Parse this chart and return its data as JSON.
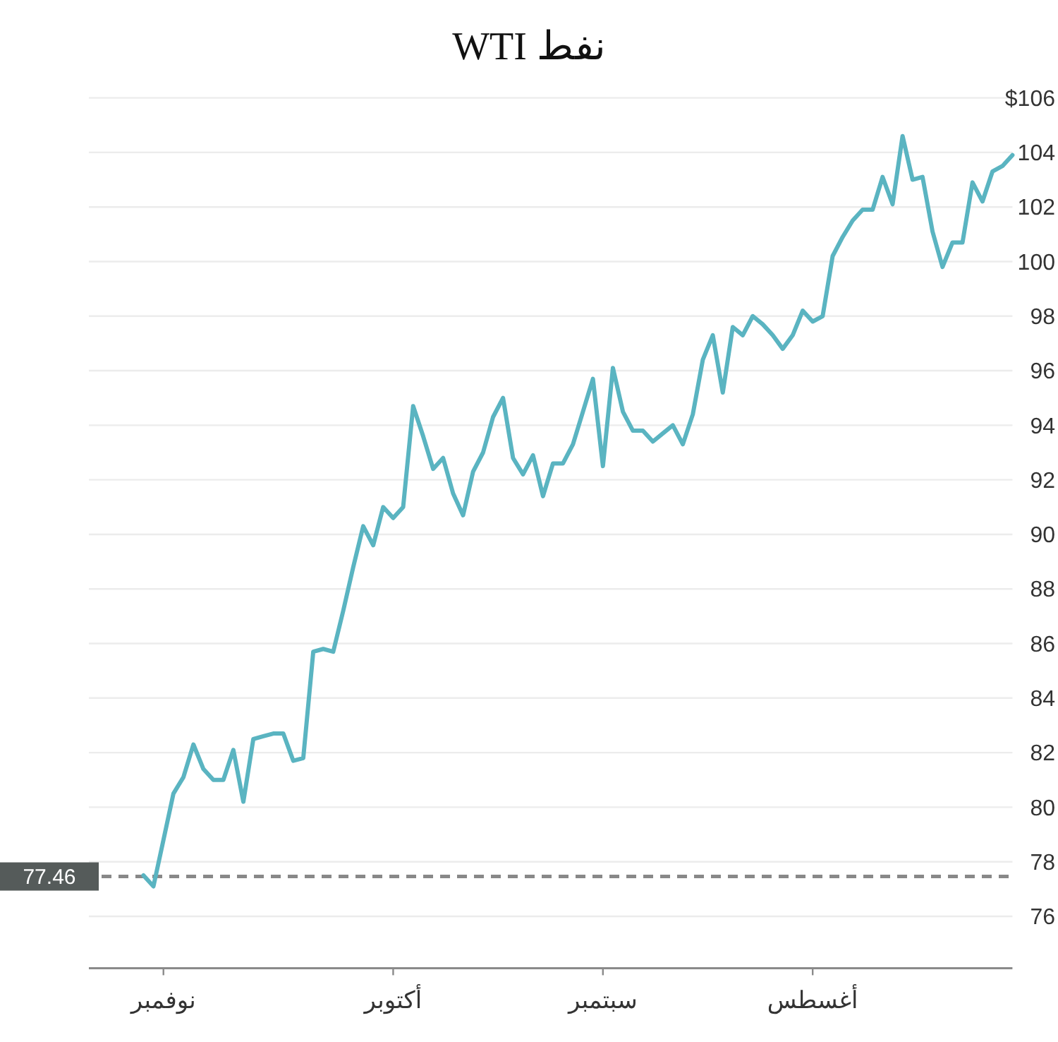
{
  "chart_data": {
    "type": "line",
    "title": "نفط WTI",
    "categories": [
      null,
      null,
      "نوفمبر",
      null,
      null,
      null,
      null,
      null,
      null,
      null,
      null,
      null,
      null,
      null,
      null,
      null,
      null,
      null,
      null,
      null,
      null,
      null,
      null,
      null,
      null,
      "أكتوبر",
      null,
      null,
      null,
      null,
      null,
      null,
      null,
      null,
      null,
      null,
      null,
      null,
      null,
      null,
      null,
      null,
      null,
      null,
      null,
      null,
      "سبتمبر",
      null,
      null,
      null,
      null,
      null,
      null,
      null,
      null,
      null,
      null,
      null,
      null,
      null,
      null,
      null,
      null,
      null,
      null,
      null,
      null,
      "أغسطس",
      null,
      null,
      null,
      null,
      null,
      null,
      null,
      null,
      null,
      null,
      null,
      null,
      null,
      null,
      null,
      null,
      null,
      null,
      null,
      null
    ],
    "series": [
      {
        "color": "#5ab4c1",
        "values": [
          77.5,
          77.1,
          78.8,
          80.5,
          81.1,
          82.3,
          81.4,
          81.0,
          81.0,
          82.1,
          80.2,
          82.5,
          82.6,
          82.7,
          82.7,
          81.7,
          81.8,
          85.7,
          85.8,
          85.7,
          87.2,
          88.8,
          90.3,
          89.6,
          91.0,
          90.6,
          91.0,
          94.7,
          93.6,
          92.4,
          92.8,
          91.5,
          90.7,
          92.3,
          93.0,
          94.3,
          95.0,
          92.8,
          92.2,
          92.9,
          91.4,
          92.6,
          92.6,
          93.3,
          94.5,
          95.7,
          92.5,
          96.1,
          94.5,
          93.8,
          93.8,
          93.4,
          93.7,
          94.0,
          93.3,
          94.4,
          96.4,
          97.3,
          95.2,
          97.6,
          97.3,
          98.0,
          97.7,
          97.3,
          96.8,
          97.3,
          98.2,
          97.8,
          98.0,
          100.2,
          100.9,
          101.5,
          101.9,
          101.9,
          103.1,
          102.1,
          104.6,
          103.0,
          103.1,
          101.1,
          99.8,
          100.7,
          100.7,
          102.9,
          102.2,
          103.3,
          103.5,
          103.9
        ]
      }
    ],
    "ylim": [
      74.1,
      106
    ],
    "yticks": [
      76,
      78,
      80,
      82,
      84,
      86,
      88,
      90,
      92,
      94,
      96,
      98,
      100,
      102,
      104,
      {
        "value": 106,
        "label": "$106"
      }
    ],
    "grid": "y",
    "ref_lines": [
      {
        "axis": "y",
        "value": 77.46,
        "label": "77.46",
        "color": "#888888",
        "line_style": "dashed"
      }
    ]
  }
}
